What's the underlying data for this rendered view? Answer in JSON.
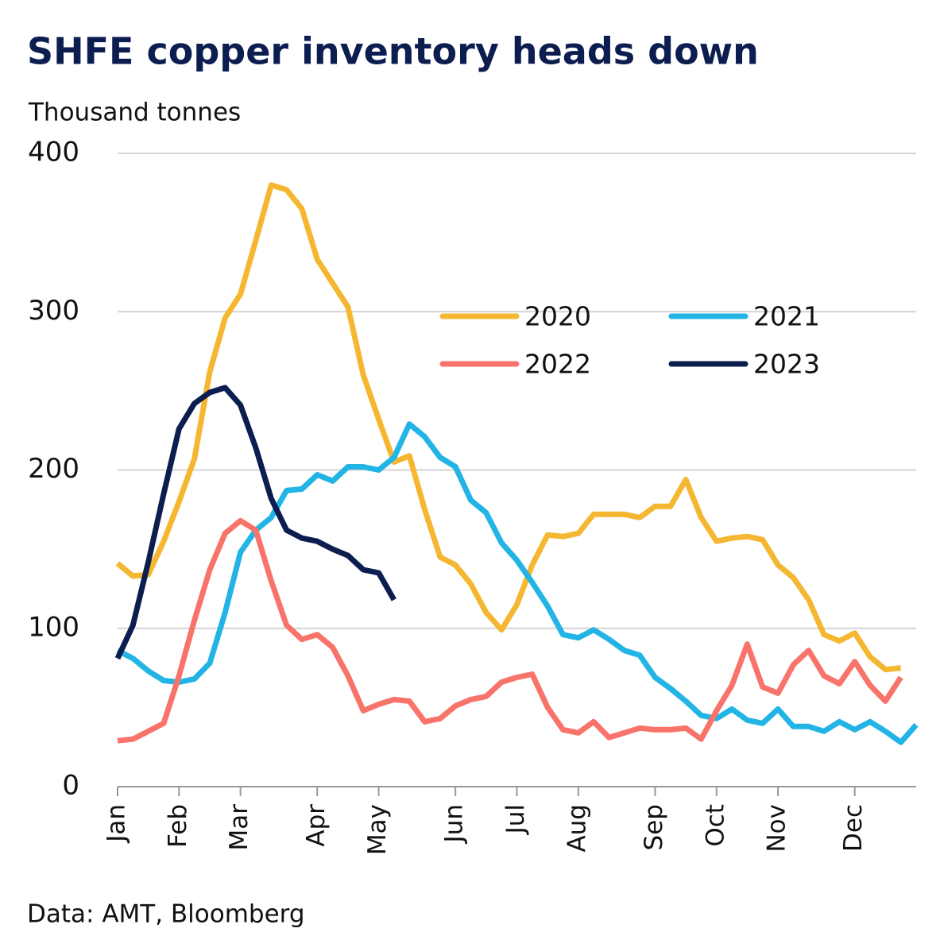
{
  "chart_data": {
    "type": "line",
    "title": "SHFE copper inventory heads down",
    "subtitle": "Thousand tonnes",
    "source": "Data: AMT, Bloomberg",
    "categories": [
      "Jan",
      null,
      null,
      null,
      "Feb",
      null,
      null,
      null,
      "Mar",
      null,
      null,
      null,
      null,
      "Apr",
      null,
      null,
      null,
      "May",
      null,
      null,
      null,
      null,
      "Jun",
      null,
      null,
      null,
      "Jul",
      null,
      null,
      null,
      "Aug",
      null,
      null,
      null,
      null,
      "Sep",
      null,
      null,
      null,
      "Oct",
      null,
      null,
      null,
      "Nov",
      null,
      null,
      null,
      null,
      "Dec",
      null,
      null,
      null,
      null
    ],
    "series": [
      {
        "name": "2020",
        "color": "#f5b731",
        "values": [
          141,
          133,
          134,
          155,
          180,
          207,
          262,
          296,
          311,
          345,
          380,
          377,
          365,
          333,
          318,
          303,
          260,
          232,
          205,
          209,
          175,
          145,
          140,
          128,
          110,
          99,
          115,
          140,
          159,
          158,
          160,
          172,
          172,
          172,
          170,
          177,
          177,
          194,
          170,
          155,
          157,
          158,
          156,
          140,
          132,
          118,
          96,
          92,
          97,
          82,
          74,
          75,
          null
        ]
      },
      {
        "name": "2021",
        "color": "#23b4e6",
        "values": [
          86,
          81,
          73,
          67,
          66,
          68,
          78,
          110,
          148,
          162,
          170,
          187,
          188,
          197,
          193,
          202,
          202,
          200,
          208,
          229,
          221,
          208,
          202,
          181,
          173,
          154,
          143,
          129,
          114,
          96,
          94,
          99,
          93,
          86,
          83,
          69,
          62,
          54,
          45,
          43,
          49,
          42,
          40,
          49,
          38,
          38,
          35,
          41,
          36,
          41,
          35,
          28,
          39
        ]
      },
      {
        "name": "2022",
        "color": "#f8736a",
        "values": [
          29,
          30,
          35,
          40,
          70,
          105,
          137,
          160,
          168,
          162,
          130,
          102,
          93,
          96,
          88,
          70,
          48,
          52,
          55,
          54,
          41,
          43,
          51,
          55,
          57,
          66,
          69,
          71,
          50,
          36,
          34,
          41,
          31,
          34,
          37,
          36,
          36,
          37,
          30,
          48,
          64,
          90,
          63,
          59,
          77,
          86,
          70,
          65,
          79,
          64,
          54,
          69,
          null
        ]
      },
      {
        "name": "2023",
        "color": "#0c1d4f",
        "values": [
          81,
          102,
          142,
          185,
          226,
          242,
          249,
          252,
          241,
          214,
          182,
          162,
          157,
          155,
          150,
          146,
          137,
          135,
          118,
          null,
          null,
          null,
          null,
          null,
          null,
          null,
          null,
          null,
          null,
          null,
          null,
          null,
          null,
          null,
          null,
          null,
          null,
          null,
          null,
          null,
          null,
          null,
          null,
          null,
          null,
          null,
          null,
          null,
          null,
          null,
          null,
          null,
          null
        ]
      }
    ],
    "ylim": [
      0,
      400
    ],
    "yticks": [
      0,
      100,
      200,
      300,
      400
    ],
    "grid": true
  }
}
